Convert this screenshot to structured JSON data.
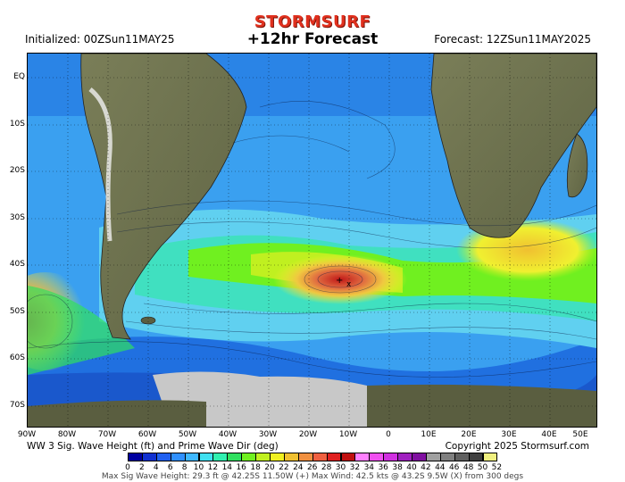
{
  "brand": "STORMSURF",
  "header": {
    "initialized": "Initialized: 00ZSun11MAY25",
    "title": "+12hr Forecast",
    "forecast": "Forecast: 12ZSun11MAY2025"
  },
  "lat_labels": [
    "EQ",
    "10S",
    "20S",
    "30S",
    "40S",
    "50S",
    "60S",
    "70S"
  ],
  "lon_labels": [
    "90W",
    "80W",
    "70W",
    "60W",
    "50W",
    "40W",
    "30W",
    "20W",
    "10W",
    "0",
    "10E",
    "20E",
    "30E",
    "40E",
    "50E"
  ],
  "caption": {
    "left": "WW 3 Sig. Wave Height (ft) and Prime Wave Dir (deg)",
    "right": "Copyright 2025 Stormsurf.com"
  },
  "scale": {
    "values": [
      "0",
      "2",
      "4",
      "6",
      "8",
      "10",
      "12",
      "14",
      "16",
      "18",
      "20",
      "22",
      "24",
      "26",
      "28",
      "30",
      "32",
      "34",
      "36",
      "38",
      "40",
      "42",
      "44",
      "46",
      "48",
      "50",
      "52"
    ],
    "colors": [
      "#0000a0",
      "#1030d0",
      "#2060f0",
      "#3090ff",
      "#40b8ff",
      "#40e0f0",
      "#30f0b0",
      "#30e060",
      "#70f020",
      "#c0f020",
      "#f0f020",
      "#f0c030",
      "#f09040",
      "#f06040",
      "#e02020",
      "#c01010",
      "#ff80ff",
      "#f050f0",
      "#d030e0",
      "#a020c0",
      "#8010a0",
      "#a0a0a0",
      "#808080",
      "#606060",
      "#404040",
      "#f0f080"
    ]
  },
  "footer": "Max Sig Wave Height: 29.3 ft @ 42.25S 11.50W (+)   Max Wind: 42.5 kts @ 43.2S 9.5W (X) from 300 degs",
  "map": {
    "colors": {
      "ocean_deep": "#1560d8",
      "ocean_mid": "#3aa0f0",
      "ocean_light": "#60d0f0",
      "land": "#6f7450",
      "ice": "#c8c8c8",
      "swell_high": "#f0e030",
      "swell_peak": "#d04020"
    }
  }
}
